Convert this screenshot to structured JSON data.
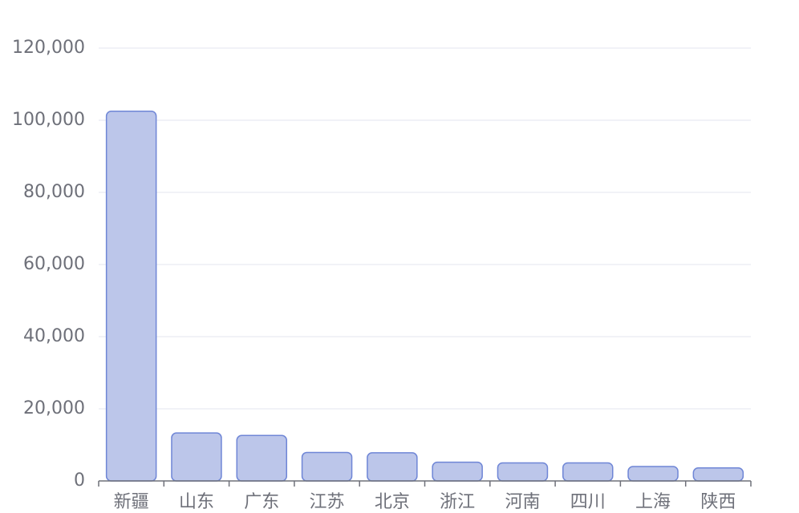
{
  "chart_data": {
    "type": "bar",
    "categories": [
      "新疆",
      "山东",
      "广东",
      "江苏",
      "北京",
      "浙江",
      "河南",
      "四川",
      "上海",
      "陕西"
    ],
    "values": [
      102500,
      13300,
      12600,
      7900,
      7800,
      5200,
      5000,
      5000,
      4000,
      3600
    ],
    "ylim": [
      0,
      120000
    ],
    "yticks": [
      "0",
      "20,000",
      "40,000",
      "60,000",
      "80,000",
      "100,000",
      "120,000"
    ],
    "grid": true,
    "colors": {
      "bar_fill": "#bcc6ea",
      "bar_stroke": "#6f86d6",
      "grid": "#e3e6ef",
      "axis": "#6e7079",
      "label": "#6e7079"
    }
  }
}
